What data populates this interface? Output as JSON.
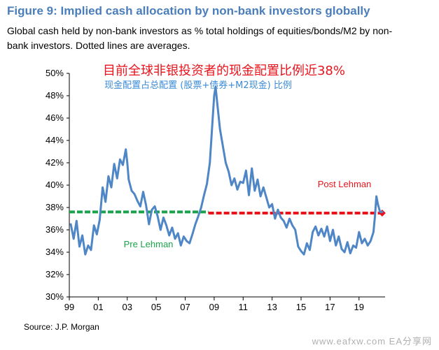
{
  "header": {
    "title": "Figure 9: Implied cash allocation by non-bank investors globally",
    "subtitle": "Global cash held by non-bank investors as % total holdings of equities/bonds/M2 by non-bank investors. Dotted lines are averages."
  },
  "footer": {
    "source": "Source: J.P. Morgan",
    "watermark": "www.eafxw.com EA分享网"
  },
  "colors": {
    "line": "#4f86c6",
    "pre_avg": "#1aa34a",
    "post_avg": "#e8131b",
    "title": "#4a7ebb"
  },
  "chart_data": {
    "type": "line",
    "title": "目前全球非银投资者的现金配置比例近38%",
    "subtitle": "现金配置占总配置 (股票+债券+M2现金) 比例",
    "xlabel": "",
    "ylabel": "",
    "x_range": [
      1999.0,
      2020.8
    ],
    "ylim": [
      30,
      50
    ],
    "y_ticks": [
      "30%",
      "32%",
      "34%",
      "36%",
      "38%",
      "40%",
      "42%",
      "44%",
      "46%",
      "48%",
      "50%"
    ],
    "x_ticks": [
      {
        "label": "99",
        "x": 1999
      },
      {
        "label": "01",
        "x": 2001
      },
      {
        "label": "03",
        "x": 2003
      },
      {
        "label": "05",
        "x": 2005
      },
      {
        "label": "07",
        "x": 2007
      },
      {
        "label": "09",
        "x": 2009
      },
      {
        "label": "11",
        "x": 2011
      },
      {
        "label": "13",
        "x": 2013
      },
      {
        "label": "15",
        "x": 2015
      },
      {
        "label": "17",
        "x": 2017
      },
      {
        "label": "19",
        "x": 2019
      }
    ],
    "grid": false,
    "series": [
      {
        "name": "",
        "x": [
          1999.1,
          1999.3,
          1999.5,
          1999.7,
          1999.9,
          2000.1,
          2000.3,
          2000.5,
          2000.7,
          2000.9,
          2001.1,
          2001.3,
          2001.5,
          2001.7,
          2001.9,
          2002.1,
          2002.3,
          2002.5,
          2002.7,
          2002.9,
          2003.0,
          2003.1,
          2003.3,
          2003.5,
          2003.7,
          2003.9,
          2004.1,
          2004.3,
          2004.5,
          2004.7,
          2004.9,
          2005.1,
          2005.3,
          2005.5,
          2005.7,
          2005.9,
          2006.1,
          2006.3,
          2006.5,
          2006.7,
          2006.9,
          2007.1,
          2007.3,
          2007.5,
          2007.7,
          2007.9,
          2008.1,
          2008.3,
          2008.5,
          2008.7,
          2008.9,
          2009.0,
          2009.1,
          2009.2,
          2009.4,
          2009.6,
          2009.8,
          2010.0,
          2010.2,
          2010.4,
          2010.6,
          2010.8,
          2011.0,
          2011.2,
          2011.4,
          2011.6,
          2011.8,
          2012.0,
          2012.2,
          2012.4,
          2012.6,
          2012.8,
          2013.0,
          2013.2,
          2013.4,
          2013.6,
          2013.8,
          2014.0,
          2014.2,
          2014.4,
          2014.6,
          2014.8,
          2015.0,
          2015.2,
          2015.4,
          2015.6,
          2015.8,
          2016.0,
          2016.2,
          2016.4,
          2016.6,
          2016.8,
          2017.0,
          2017.2,
          2017.4,
          2017.6,
          2017.8,
          2018.0,
          2018.2,
          2018.4,
          2018.6,
          2018.8,
          2019.0,
          2019.2,
          2019.4,
          2019.6,
          2019.8,
          2020.0,
          2020.1,
          2020.2,
          2020.3,
          2020.45,
          2020.6
        ],
        "values": [
          36.5,
          35.2,
          36.8,
          34.5,
          35.5,
          33.8,
          34.6,
          34.2,
          36.4,
          35.6,
          36.9,
          39.8,
          38.5,
          40.8,
          39.8,
          41.9,
          40.6,
          42.3,
          41.8,
          43.2,
          42.0,
          40.5,
          39.5,
          39.2,
          38.6,
          38.1,
          39.4,
          38.2,
          36.5,
          37.8,
          38.1,
          37.2,
          36.0,
          37.1,
          36.4,
          35.5,
          36.2,
          35.2,
          35.7,
          34.6,
          35.4,
          35.0,
          34.8,
          35.6,
          36.5,
          37.2,
          38.0,
          39.1,
          40.1,
          42.0,
          46.0,
          48.0,
          48.8,
          47.5,
          45.0,
          43.5,
          42.0,
          41.2,
          40.0,
          40.6,
          39.6,
          40.3,
          40.2,
          41.3,
          39.1,
          41.5,
          39.5,
          40.5,
          39.0,
          39.8,
          38.9,
          38.0,
          38.3,
          37.0,
          37.8,
          37.1,
          36.8,
          36.2,
          37.0,
          36.4,
          36.0,
          34.5,
          34.1,
          33.8,
          34.8,
          34.2,
          35.8,
          36.3,
          35.5,
          36.1,
          35.4,
          36.3,
          35.0,
          36.0,
          34.6,
          35.4,
          34.3,
          34.0,
          34.9,
          33.9,
          34.6,
          34.4,
          35.8,
          34.8,
          35.2,
          34.6,
          35.0,
          35.8,
          37.2,
          39.0,
          38.3,
          37.6,
          37.6
        ]
      }
    ],
    "averages": [
      {
        "name": "Pre Lehman",
        "value": 37.6,
        "x_start": 1999.0,
        "x_end": 2008.6
      },
      {
        "name": "Post Lehman",
        "value": 37.5,
        "x_start": 2008.6,
        "x_end": 2020.6
      }
    ]
  }
}
